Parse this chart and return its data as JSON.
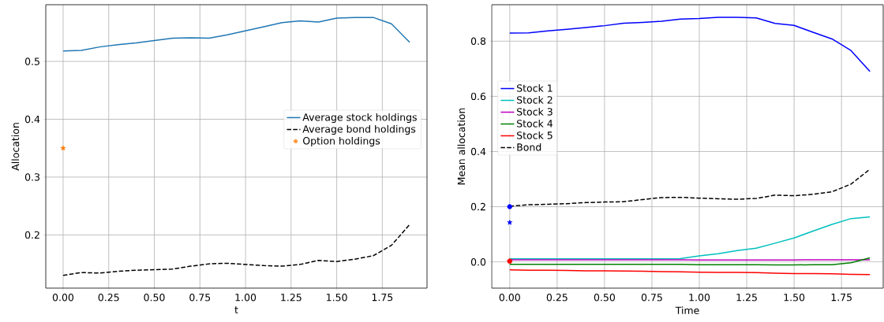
{
  "chart_data": [
    {
      "type": "line",
      "xlabel": "t",
      "ylabel": "Allocation",
      "x": [
        0,
        0.1,
        0.2,
        0.3,
        0.4,
        0.5,
        0.6,
        0.7,
        0.8,
        0.9,
        1.0,
        1.1,
        1.2,
        1.3,
        1.4,
        1.5,
        1.6,
        1.7,
        1.8,
        1.9
      ],
      "xlim": [
        -0.095,
        1.995
      ],
      "ylim": [
        0.108,
        0.598
      ],
      "xticks": [
        {
          "value": 0,
          "label": "0.00"
        },
        {
          "value": 0.25,
          "label": "0.25"
        },
        {
          "value": 0.5,
          "label": "0.50"
        },
        {
          "value": 0.75,
          "label": "0.75"
        },
        {
          "value": 1,
          "label": "1.00"
        },
        {
          "value": 1.25,
          "label": "1.25"
        },
        {
          "value": 1.5,
          "label": "1.50"
        },
        {
          "value": 1.75,
          "label": "1.75"
        }
      ],
      "yticks": [
        0.2,
        0.3,
        0.4,
        0.5
      ],
      "grid": true,
      "legend": "right",
      "series": [
        {
          "name": "Average stock holdings",
          "color": "#1f77b4",
          "values": [
            0.518,
            0.519,
            0.525,
            0.529,
            0.532,
            0.536,
            0.54,
            0.541,
            0.54,
            0.546,
            0.553,
            0.56,
            0.567,
            0.57,
            0.568,
            0.575,
            0.576,
            0.576,
            0.565,
            0.533
          ]
        },
        {
          "name": "Average bond holdings",
          "color": "#000000",
          "line_style": "dashed",
          "values": [
            0.13,
            0.135,
            0.134,
            0.137,
            0.139,
            0.14,
            0.141,
            0.146,
            0.15,
            0.151,
            0.149,
            0.147,
            0.146,
            0.149,
            0.156,
            0.154,
            0.158,
            0.164,
            0.182,
            0.218
          ]
        },
        {
          "name": "Option holdings",
          "type": "scatter",
          "marker": "star",
          "color": "#ff7f0e",
          "values": [
            0.35,
            null,
            null,
            null,
            null,
            null,
            null,
            null,
            null,
            null,
            null,
            null,
            null,
            null,
            null,
            null,
            null,
            null,
            null,
            null
          ]
        }
      ]
    },
    {
      "type": "line",
      "xlabel": "Time",
      "ylabel": "Mean allocation",
      "x": [
        0,
        0.1,
        0.2,
        0.3,
        0.4,
        0.5,
        0.6,
        0.7,
        0.8,
        0.9,
        1.0,
        1.1,
        1.2,
        1.3,
        1.4,
        1.5,
        1.6,
        1.7,
        1.8,
        1.9
      ],
      "xlim": [
        -0.095,
        1.97
      ],
      "ylim": [
        -0.095,
        0.932
      ],
      "xticks": [
        {
          "value": 0,
          "label": "0.00"
        },
        {
          "value": 0.25,
          "label": "0.25"
        },
        {
          "value": 0.5,
          "label": "0.50"
        },
        {
          "value": 0.75,
          "label": "0.75"
        },
        {
          "value": 1,
          "label": "1.00"
        },
        {
          "value": 1.25,
          "label": "1.25"
        },
        {
          "value": 1.5,
          "label": "1.50"
        },
        {
          "value": 1.75,
          "label": "1.75"
        }
      ],
      "yticks": [
        {
          "value": 0,
          "label": "0.0"
        },
        0.2,
        0.4,
        0.6,
        0.8
      ],
      "grid": true,
      "legend": "left",
      "series": [
        {
          "name": "Stock 1",
          "color": "#0000ff",
          "values": [
            0.829,
            0.83,
            0.837,
            0.843,
            0.849,
            0.856,
            0.865,
            0.868,
            0.872,
            0.88,
            0.882,
            0.886,
            0.886,
            0.884,
            0.864,
            0.857,
            0.832,
            0.808,
            0.766,
            0.69
          ]
        },
        {
          "name": "Stock 2",
          "color": "#00bfbf",
          "values": [
            0.011,
            0.011,
            0.011,
            0.011,
            0.011,
            0.011,
            0.011,
            0.011,
            0.011,
            0.012,
            0.022,
            0.03,
            0.041,
            0.05,
            0.068,
            0.087,
            0.112,
            0.136,
            0.157,
            0.163
          ]
        },
        {
          "name": "Stock 3",
          "color": "#bf00bf",
          "values": [
            0.008,
            0.008,
            0.008,
            0.008,
            0.008,
            0.008,
            0.008,
            0.008,
            0.008,
            0.008,
            0.007,
            0.007,
            0.007,
            0.007,
            0.007,
            0.007,
            0.008,
            0.008,
            0.008,
            0.008
          ]
        },
        {
          "name": "Stock 4",
          "color": "#008000",
          "values": [
            -0.009,
            -0.009,
            -0.009,
            -0.009,
            -0.009,
            -0.009,
            -0.009,
            -0.009,
            -0.009,
            -0.009,
            -0.01,
            -0.01,
            -0.01,
            -0.01,
            -0.011,
            -0.011,
            -0.01,
            -0.01,
            -0.003,
            0.015
          ]
        },
        {
          "name": "Stock 5",
          "color": "#ff0000",
          "values": [
            -0.029,
            -0.03,
            -0.03,
            -0.031,
            -0.032,
            -0.032,
            -0.033,
            -0.034,
            -0.035,
            -0.036,
            -0.037,
            -0.038,
            -0.038,
            -0.039,
            -0.041,
            -0.042,
            -0.042,
            -0.043,
            -0.045,
            -0.046
          ]
        },
        {
          "name": "Bond",
          "color": "#000000",
          "line_style": "dashed",
          "values": [
            0.202,
            0.207,
            0.209,
            0.211,
            0.215,
            0.217,
            0.218,
            0.226,
            0.233,
            0.234,
            0.231,
            0.229,
            0.227,
            0.23,
            0.242,
            0.24,
            0.245,
            0.254,
            0.282,
            0.336
          ]
        },
        {
          "type": "scatter",
          "marker": "circle",
          "color": "#0000ff",
          "values": [
            0.2,
            null,
            null,
            null,
            null,
            null,
            null,
            null,
            null,
            null,
            null,
            null,
            null,
            null,
            null,
            null,
            null,
            null,
            null,
            null
          ]
        },
        {
          "type": "scatter",
          "marker": "star",
          "color": "#0000ff",
          "values": [
            0.143,
            null,
            null,
            null,
            null,
            null,
            null,
            null,
            null,
            null,
            null,
            null,
            null,
            null,
            null,
            null,
            null,
            null,
            null,
            null
          ]
        },
        {
          "type": "scatter",
          "marker": "circle",
          "color": "#ff0000",
          "values": [
            0.003,
            null,
            null,
            null,
            null,
            null,
            null,
            null,
            null,
            null,
            null,
            null,
            null,
            null,
            null,
            null,
            null,
            null,
            null,
            null
          ]
        },
        {
          "type": "scatter",
          "marker": "star",
          "color": "#ff0000",
          "values": [
            0.003,
            null,
            null,
            null,
            null,
            null,
            null,
            null,
            null,
            null,
            null,
            null,
            null,
            null,
            null,
            null,
            null,
            null,
            null,
            null
          ]
        }
      ]
    }
  ]
}
